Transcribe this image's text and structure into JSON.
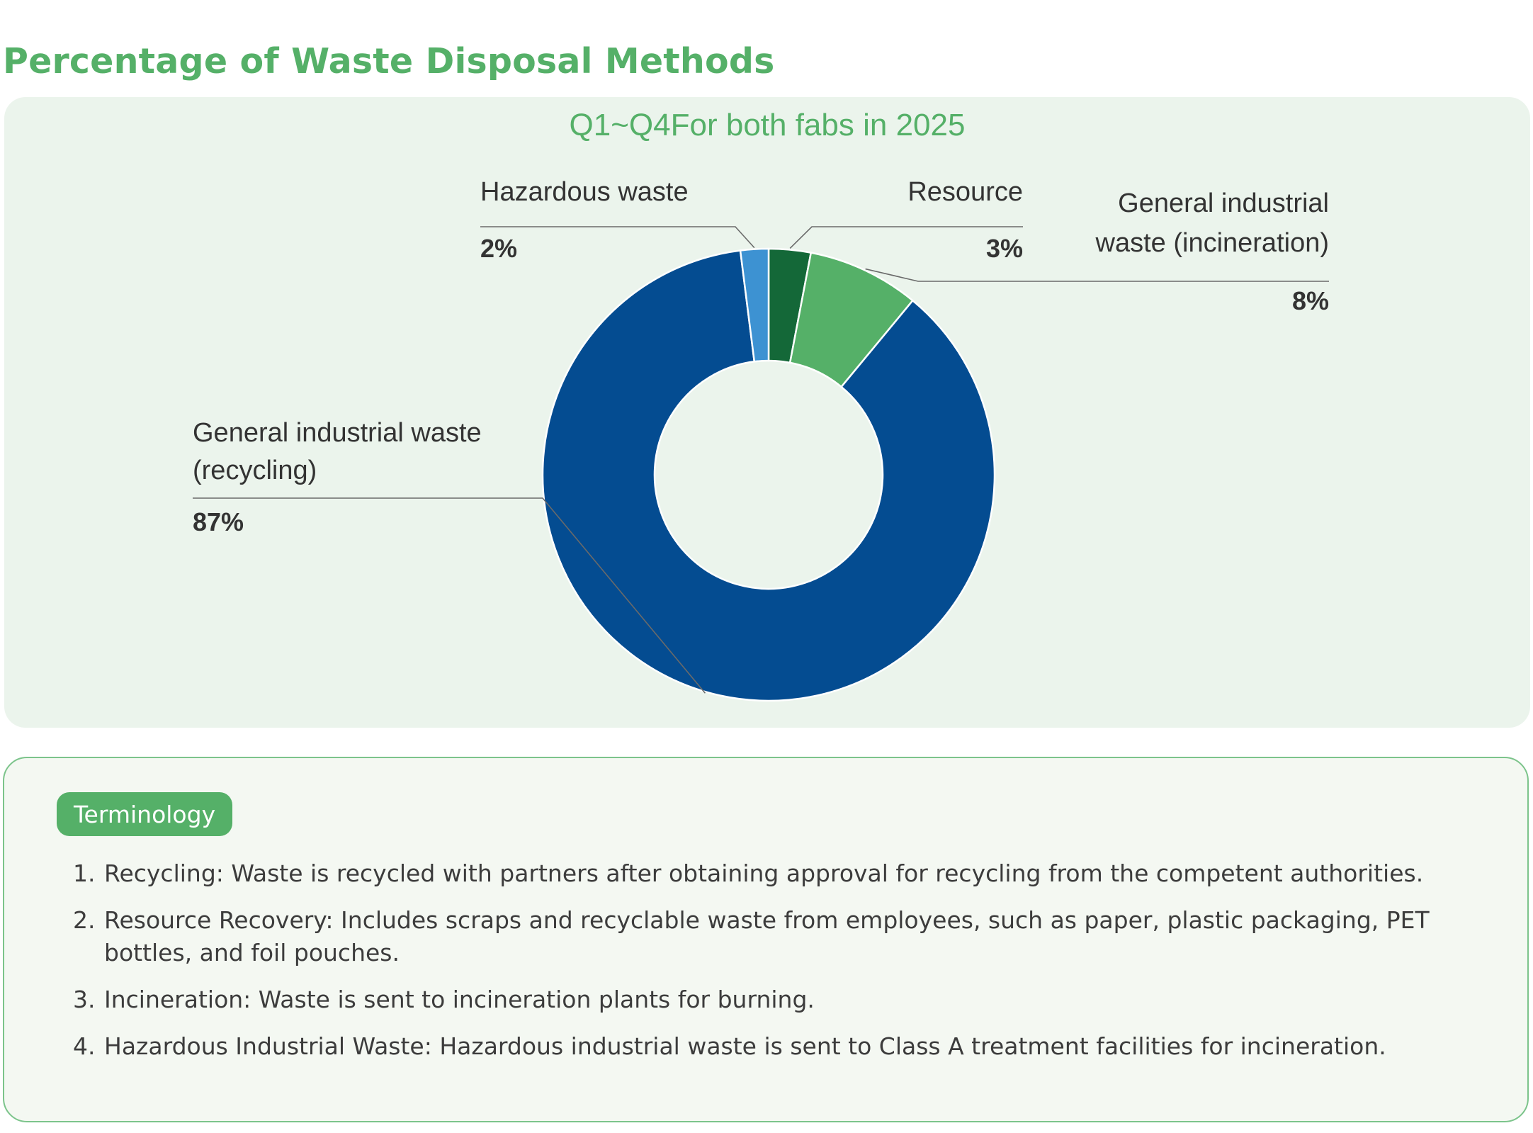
{
  "page": {
    "title": "Percentage of Waste Disposal Methods"
  },
  "colors": {
    "title_green": "#55b068",
    "panel_bg": "#ebf4ec",
    "term_bg": "#f4f8f2",
    "term_border": "#7cc48b"
  },
  "chart_data": {
    "type": "pie",
    "subtitle": "Q1~Q4For both fabs in 2025",
    "donut": true,
    "slices": [
      {
        "key": "resource",
        "label": [
          "Resource"
        ],
        "value": 3,
        "value_label": "3%",
        "color": "#146838"
      },
      {
        "key": "incineration",
        "label": [
          "General industrial",
          "waste (incineration)"
        ],
        "value": 8,
        "value_label": "8%",
        "color": "#55b068"
      },
      {
        "key": "recycling",
        "label": [
          "General industrial waste",
          "(recycling)"
        ],
        "value": 87,
        "value_label": "87%",
        "color": "#044c91"
      },
      {
        "key": "hazardous",
        "label": [
          "Hazardous waste"
        ],
        "value": 2,
        "value_label": "2%",
        "color": "#3d92d2"
      }
    ]
  },
  "terminology": {
    "heading": "Terminology",
    "items": [
      {
        "num": "1.",
        "text": "Recycling: Waste is recycled with partners after obtaining approval for recycling from the competent authorities."
      },
      {
        "num": "2.",
        "text": "Resource Recovery: Includes scraps and recyclable waste from employees, such as paper, plastic packaging, PET bottles, and foil pouches."
      },
      {
        "num": "3.",
        "text": "Incineration: Waste is sent to incineration plants for burning."
      },
      {
        "num": "4.",
        "text": "Hazardous Industrial Waste: Hazardous industrial waste is sent to Class A treatment facilities for incineration."
      }
    ]
  }
}
